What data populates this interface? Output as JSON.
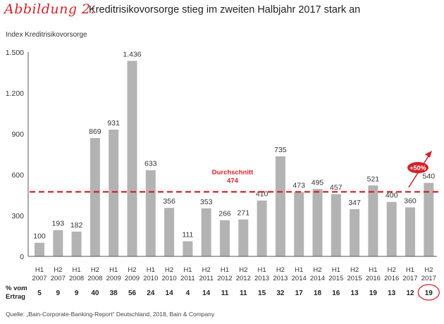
{
  "header": {
    "figure_label": "Abbildung 2:",
    "title": "Kreditrisikovorsorge stieg im zweiten Halbjahr 2017 stark an"
  },
  "source": "Quelle: „Bain-Corporate-Banking-Report“ Deutschland, 2018, Bain & Company",
  "chart_data": {
    "type": "bar",
    "title": "",
    "ylabel": "Index Kreditrisikovorsorge",
    "xlabel": "",
    "ylim": [
      0,
      1500
    ],
    "yticks": [
      0,
      300,
      600,
      900,
      1200,
      1500
    ],
    "ytick_labels": [
      "0",
      "300",
      "600",
      "900",
      "1.200",
      "1.500"
    ],
    "grid": false,
    "categories": [
      [
        "H1",
        "2007"
      ],
      [
        "H2",
        "2007"
      ],
      [
        "H1",
        "2008"
      ],
      [
        "H2",
        "2008"
      ],
      [
        "H1",
        "2009"
      ],
      [
        "H2",
        "2009"
      ],
      [
        "H1",
        "2010"
      ],
      [
        "H2",
        "2010"
      ],
      [
        "H1",
        "2011"
      ],
      [
        "H2",
        "2011"
      ],
      [
        "H1",
        "2012"
      ],
      [
        "H2",
        "2012"
      ],
      [
        "H1",
        "2013"
      ],
      [
        "H2",
        "2013"
      ],
      [
        "H1",
        "2014"
      ],
      [
        "H2",
        "2014"
      ],
      [
        "H1",
        "2015"
      ],
      [
        "H2",
        "2015"
      ],
      [
        "H1",
        "2016"
      ],
      [
        "H2",
        "2016"
      ],
      [
        "H1",
        "2017"
      ],
      [
        "H2",
        "2017"
      ]
    ],
    "values": [
      100,
      193,
      182,
      869,
      931,
      1436,
      633,
      356,
      111,
      353,
      266,
      271,
      410,
      735,
      473,
      495,
      457,
      347,
      521,
      400,
      360,
      540
    ],
    "value_labels": [
      "100",
      "193",
      "182",
      "869",
      "931",
      "1.436",
      "633",
      "356",
      "111",
      "353",
      "266",
      "271",
      "410",
      "735",
      "473",
      "495",
      "457",
      "347",
      "521",
      "400",
      "360",
      "540"
    ],
    "average": {
      "label": "Durchschnitt",
      "value": 474,
      "value_label": "474"
    },
    "row_label": [
      "% vom",
      "Ertrag"
    ],
    "percent_of_income": [
      5,
      9,
      9,
      40,
      38,
      56,
      24,
      14,
      4,
      14,
      11,
      11,
      15,
      32,
      17,
      18,
      16,
      13,
      19,
      13,
      12,
      19
    ],
    "highlighted_index": 21,
    "annotation": "+50%",
    "colors": {
      "bar": "#b3b3b3",
      "accent": "#d2232a",
      "text": "#222222"
    }
  }
}
